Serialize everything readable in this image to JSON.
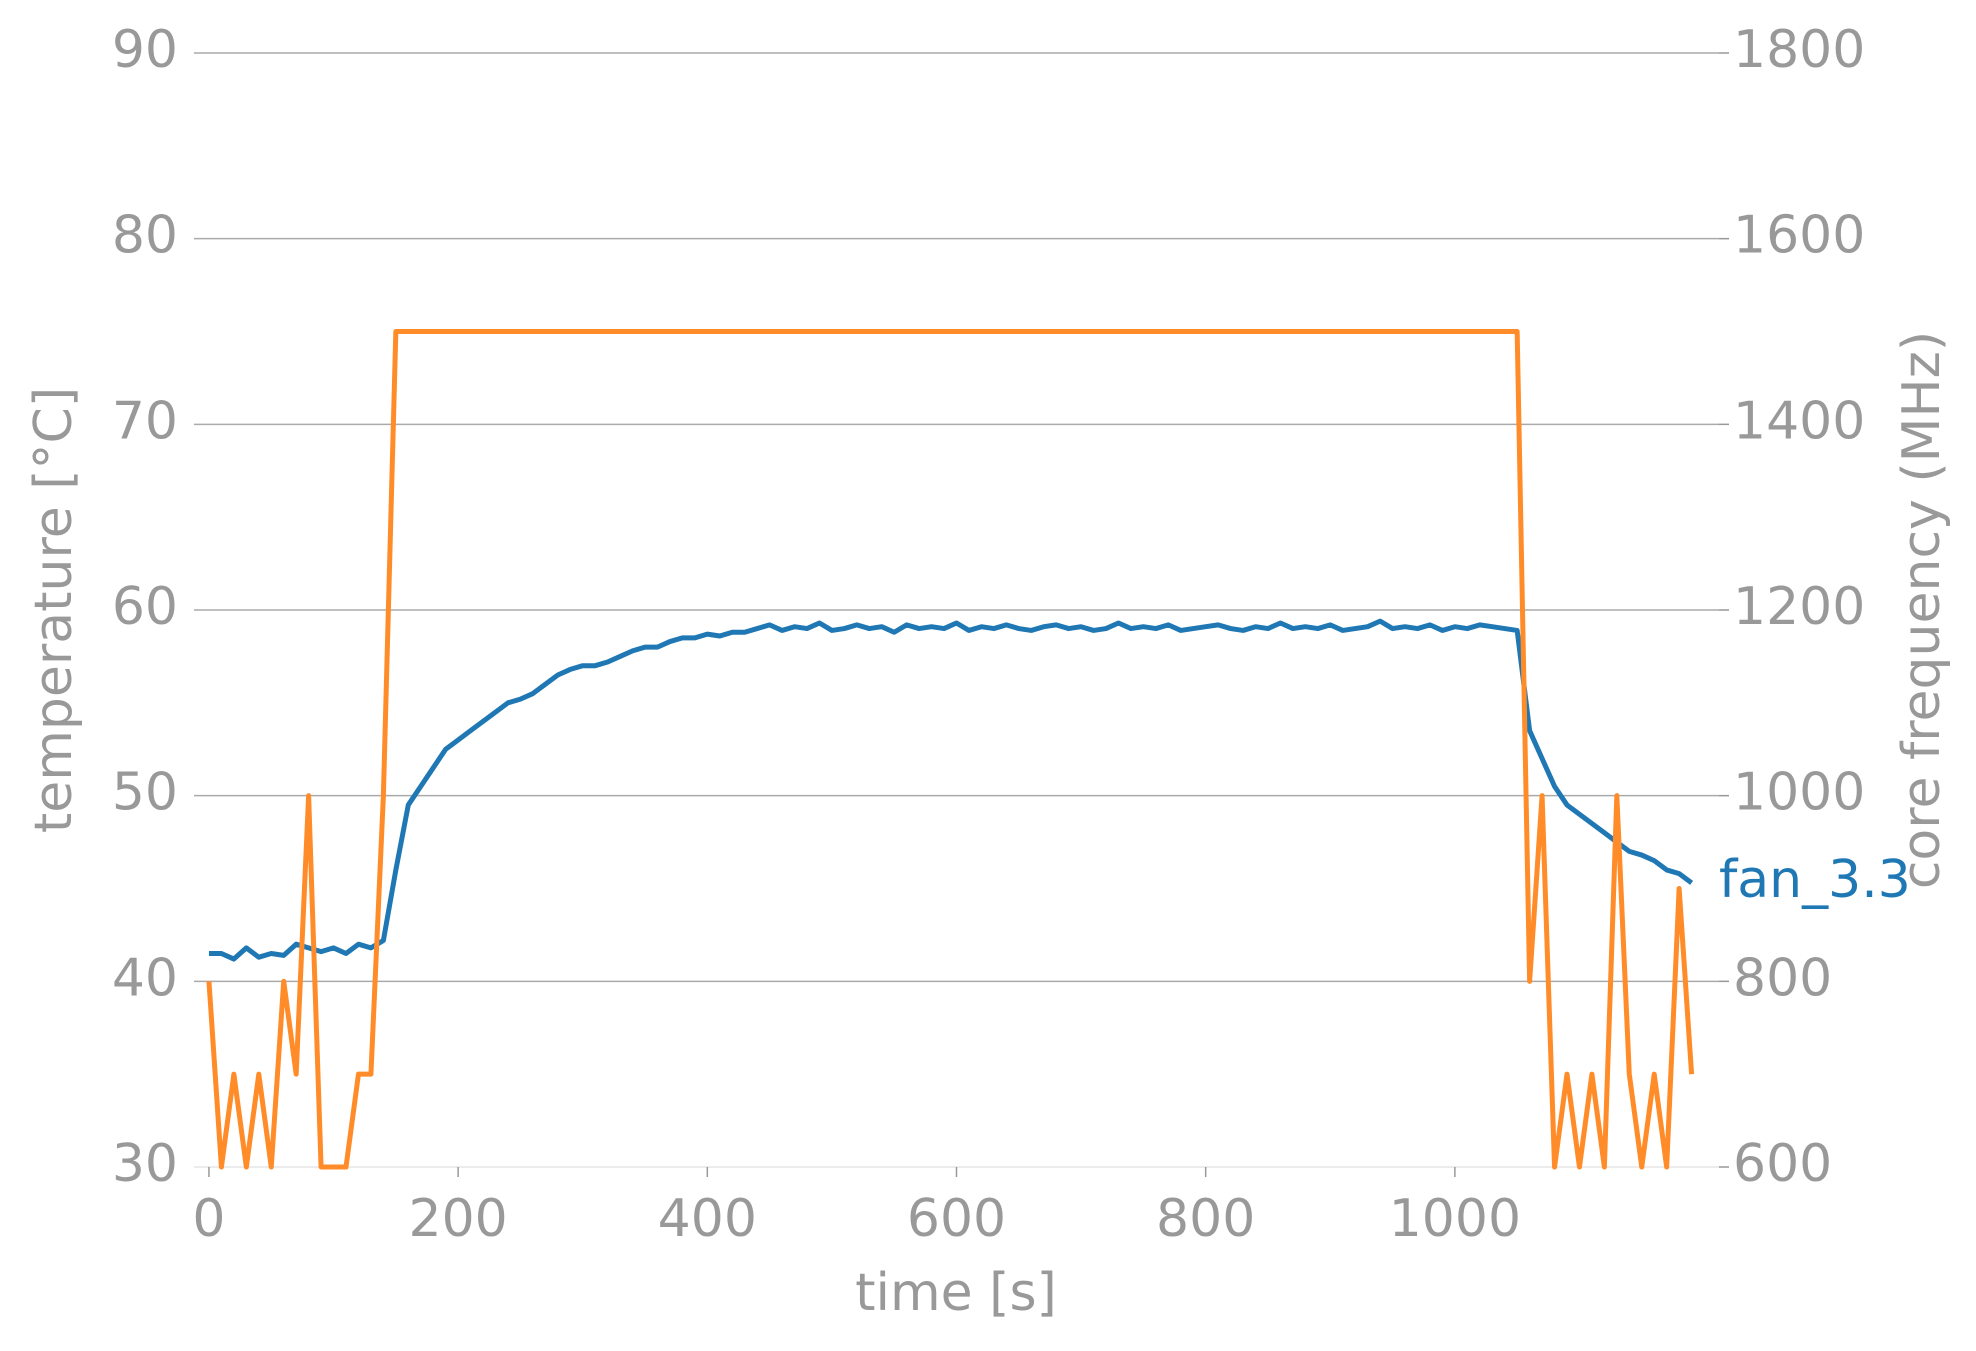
{
  "chart_data": {
    "type": "line",
    "xlabel": "time [s]",
    "ylabel": "temperature [°C]",
    "y2label": "core frequency (MHz)",
    "x": [
      0,
      10,
      20,
      30,
      40,
      50,
      60,
      70,
      80,
      90,
      100,
      110,
      120,
      130,
      140,
      150,
      160,
      170,
      180,
      190,
      200,
      210,
      220,
      230,
      240,
      250,
      260,
      270,
      280,
      290,
      300,
      310,
      320,
      330,
      340,
      350,
      360,
      370,
      380,
      390,
      400,
      410,
      420,
      430,
      440,
      450,
      460,
      470,
      480,
      490,
      500,
      510,
      520,
      530,
      540,
      550,
      560,
      570,
      580,
      590,
      600,
      610,
      620,
      630,
      640,
      650,
      660,
      670,
      680,
      690,
      700,
      710,
      720,
      730,
      740,
      750,
      760,
      770,
      780,
      790,
      800,
      810,
      820,
      830,
      840,
      850,
      860,
      870,
      880,
      890,
      900,
      910,
      920,
      930,
      940,
      950,
      960,
      970,
      980,
      990,
      1000,
      1010,
      1020,
      1030,
      1040,
      1050,
      1060,
      1070,
      1080,
      1090,
      1100,
      1110,
      1120,
      1130,
      1140,
      1150,
      1160,
      1170,
      1180,
      1190
    ],
    "series": [
      {
        "name": "fan_3.3",
        "color": "#1f77b4",
        "axis": "y",
        "values": [
          41.5,
          41.5,
          41.2,
          41.8,
          41.3,
          41.5,
          41.4,
          42,
          41.8,
          41.6,
          41.8,
          41.5,
          42,
          41.8,
          42.2,
          46,
          49.5,
          50.5,
          51.5,
          52.5,
          53,
          53.5,
          54,
          54.5,
          55,
          55.2,
          55.5,
          56,
          56.5,
          56.8,
          57,
          57,
          57.2,
          57.5,
          57.8,
          58,
          58,
          58.3,
          58.5,
          58.5,
          58.7,
          58.6,
          58.8,
          58.8,
          59,
          59.2,
          58.9,
          59.1,
          59,
          59.3,
          58.9,
          59,
          59.2,
          59,
          59.1,
          58.8,
          59.2,
          59,
          59.1,
          59,
          59.3,
          58.9,
          59.1,
          59,
          59.2,
          59,
          58.9,
          59.1,
          59.2,
          59,
          59.1,
          58.9,
          59,
          59.3,
          59,
          59.1,
          59,
          59.2,
          58.9,
          59,
          59.1,
          59.2,
          59,
          58.9,
          59.1,
          59,
          59.3,
          59,
          59.1,
          59,
          59.2,
          58.9,
          59,
          59.1,
          59.4,
          59,
          59.1,
          59,
          59.2,
          58.9,
          59.1,
          59,
          59.2,
          59.1,
          59,
          58.9,
          53.5,
          52,
          50.5,
          49.5,
          49,
          48.5,
          48,
          47.5,
          47,
          46.8,
          46.5,
          46,
          45.8,
          45.3
        ]
      },
      {
        "color": "#ff8c28",
        "axis": "y2",
        "values": [
          800,
          600,
          700,
          600,
          700,
          600,
          800,
          700,
          1000,
          600,
          600,
          600,
          700,
          700,
          1000,
          1500,
          1500,
          1500,
          1500,
          1500,
          1500,
          1500,
          1500,
          1500,
          1500,
          1500,
          1500,
          1500,
          1500,
          1500,
          1500,
          1500,
          1500,
          1500,
          1500,
          1500,
          1500,
          1500,
          1500,
          1500,
          1500,
          1500,
          1500,
          1500,
          1500,
          1500,
          1500,
          1500,
          1500,
          1500,
          1500,
          1500,
          1500,
          1500,
          1500,
          1500,
          1500,
          1500,
          1500,
          1500,
          1500,
          1500,
          1500,
          1500,
          1500,
          1500,
          1500,
          1500,
          1500,
          1500,
          1500,
          1500,
          1500,
          1500,
          1500,
          1500,
          1500,
          1500,
          1500,
          1500,
          1500,
          1500,
          1500,
          1500,
          1500,
          1500,
          1500,
          1500,
          1500,
          1500,
          1500,
          1500,
          1500,
          1500,
          1500,
          1500,
          1500,
          1500,
          1500,
          1500,
          1500,
          1500,
          1500,
          1500,
          1500,
          1500,
          800,
          1000,
          600,
          700,
          600,
          700,
          600,
          1000,
          700,
          600,
          700,
          600,
          900,
          700
        ]
      }
    ],
    "xlim": [
      -12,
      1212
    ],
    "xticks": [
      0,
      200,
      400,
      600,
      800,
      1000
    ],
    "ylim": [
      30,
      90
    ],
    "yticks": [
      30,
      40,
      50,
      60,
      70,
      80,
      90
    ],
    "y2lim": [
      600,
      1800
    ],
    "y2ticks": [
      600,
      800,
      1000,
      1200,
      1400,
      1600,
      1800
    ],
    "grid": true
  }
}
